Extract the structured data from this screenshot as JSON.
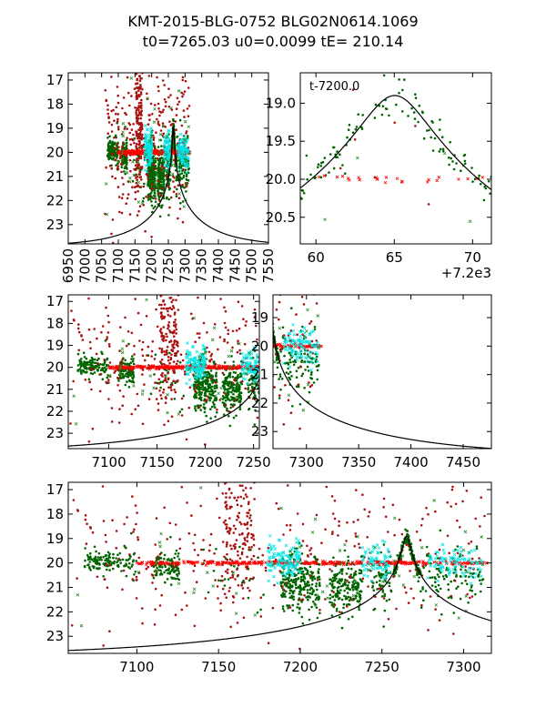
{
  "title": {
    "line1": "KMT-2015-BLG-0752 BLG02N0614.1069",
    "line2": "t0=7265.03 u0=0.0099 tE= 210.14"
  },
  "chart_data": {
    "type": "scatter",
    "model": {
      "t0": 7265.03,
      "u0": 0.0099,
      "tE": 210.14,
      "source_baseline_mag": 23.91,
      "color": "#000000"
    },
    "series": [
      {
        "name": "kmt-dots-green",
        "color": "#006400",
        "marker": "dot",
        "clusters": [
          [
            7068,
            7088,
            19.95,
            0.2,
            90
          ],
          [
            7088,
            7100,
            20.0,
            0.3,
            40
          ],
          [
            7110,
            7126,
            20.2,
            0.3,
            110
          ],
          [
            7140,
            7178,
            20.8,
            0.9,
            30
          ],
          [
            7188,
            7212,
            20.8,
            0.6,
            260
          ],
          [
            7218,
            7238,
            21.0,
            0.6,
            190
          ],
          [
            7244,
            7256,
            20.7,
            0.6,
            60
          ],
          [
            7272,
            7312,
            20.6,
            0.5,
            110
          ]
        ]
      },
      {
        "name": "kmt-model-green",
        "color": "#006400",
        "marker": "dot",
        "follows_model": true,
        "clusters": [
          [
            7257,
            7274,
            0,
            0.12,
            160
          ]
        ]
      },
      {
        "name": "kmt-dots-darkred",
        "color": "#aa1111",
        "marker": "dot",
        "clusters": [
          [
            7060,
            7315,
            19.6,
            1.7,
            320
          ],
          [
            7152,
            7172,
            18.6,
            1.5,
            160
          ]
        ]
      },
      {
        "name": "kmt-x-red",
        "color": "#ff0000",
        "marker": "x",
        "clusters": [
          [
            7100,
            7315,
            20.0,
            0.03,
            320
          ]
        ]
      },
      {
        "name": "kmt-x-cyan",
        "color": "#00e5e5",
        "marker": "x",
        "clusters": [
          [
            7180,
            7200,
            19.9,
            0.35,
            120
          ],
          [
            7238,
            7255,
            20.0,
            0.4,
            70
          ],
          [
            7278,
            7312,
            20.0,
            0.35,
            90
          ]
        ]
      },
      {
        "name": "kmt-x-green",
        "color": "#228b22",
        "marker": "x",
        "clusters": [
          [
            7060,
            7315,
            20.4,
            1.2,
            60
          ]
        ]
      }
    ],
    "panels": [
      {
        "id": "p1",
        "xlim": [
          6950,
          7550
        ],
        "ylim": [
          23.8,
          16.7
        ],
        "xticks": [
          6950,
          7000,
          7050,
          7100,
          7150,
          7200,
          7250,
          7300,
          7350,
          7400,
          7450,
          7500,
          7550
        ],
        "yticks": [
          17,
          18,
          19,
          20,
          21,
          22,
          23
        ],
        "xoffset": 0
      },
      {
        "id": "p2",
        "xlim": [
          7259,
          7271.2
        ],
        "ylim": [
          20.85,
          18.6
        ],
        "xticks": [
          60,
          65,
          70
        ],
        "yticks": [
          "19.0",
          "19.5",
          "20.0",
          "20.5"
        ],
        "xoffset": 7200,
        "offset_label": "+7.2e3",
        "annotation": "t-7200.0"
      },
      {
        "id": "p3",
        "xlim": [
          7058,
          7256
        ],
        "ylim": [
          23.7,
          16.7
        ],
        "xticks": [
          7100,
          7150,
          7200,
          7250
        ],
        "yticks": [
          17,
          18,
          19,
          20,
          21,
          22,
          23
        ],
        "xoffset": 0
      },
      {
        "id": "p4",
        "xlim": [
          7268,
          7477
        ],
        "ylim": [
          23.6,
          18.2
        ],
        "xticks": [
          7300,
          7350,
          7400,
          7450
        ],
        "yticks": [
          19,
          20,
          21,
          22,
          23
        ],
        "xoffset": 0
      },
      {
        "id": "p5",
        "xlim": [
          7058,
          7317
        ],
        "ylim": [
          23.7,
          16.7
        ],
        "xticks": [
          7100,
          7150,
          7200,
          7250,
          7300
        ],
        "yticks": [
          17,
          18,
          19,
          20,
          21,
          22,
          23
        ],
        "xoffset": 0
      }
    ]
  }
}
